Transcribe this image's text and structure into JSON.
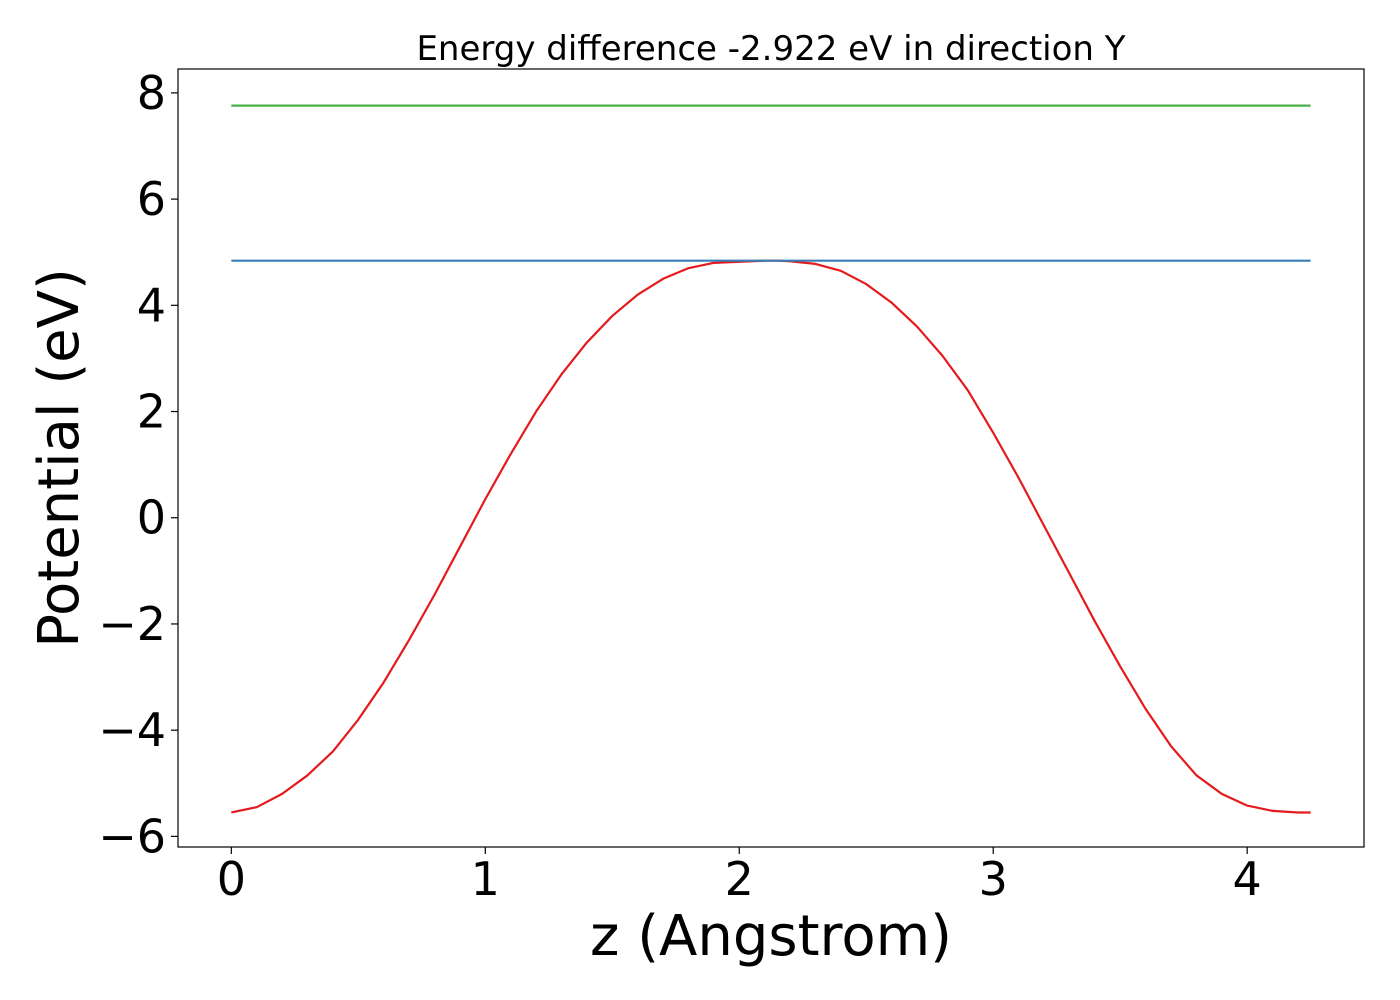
{
  "chart_data": {
    "type": "line",
    "title": "Energy difference -2.922 eV in direction Y",
    "xlabel": "z (Angstrom)",
    "ylabel": "Potential (eV)",
    "xlim": [
      -0.21,
      4.46
    ],
    "ylim": [
      -6.2,
      8.45
    ],
    "xticks": [
      0,
      1,
      2,
      3,
      4
    ],
    "yticks": [
      -6,
      -4,
      -2,
      0,
      2,
      4,
      6,
      8
    ],
    "xtick_labels": [
      "0",
      "1",
      "2",
      "3",
      "4"
    ],
    "ytick_labels": [
      "−6",
      "−4",
      "−2",
      "0",
      "2",
      "4",
      "6",
      "8"
    ],
    "grid": false,
    "series": [
      {
        "color": "#e41a1c",
        "x": [
          0.0,
          0.1,
          0.2,
          0.3,
          0.4,
          0.5,
          0.6,
          0.7,
          0.8,
          0.9,
          1.0,
          1.1,
          1.2,
          1.3,
          1.4,
          1.5,
          1.6,
          1.7,
          1.8,
          1.9,
          2.0,
          2.1,
          2.15,
          2.2,
          2.3,
          2.4,
          2.5,
          2.6,
          2.7,
          2.8,
          2.9,
          3.0,
          3.1,
          3.2,
          3.3,
          3.4,
          3.5,
          3.6,
          3.7,
          3.8,
          3.9,
          4.0,
          4.1,
          4.2,
          4.25
        ],
        "y": [
          -5.55,
          -5.45,
          -5.2,
          -4.85,
          -4.4,
          -3.8,
          -3.1,
          -2.3,
          -1.45,
          -0.55,
          0.35,
          1.2,
          2.0,
          2.7,
          3.3,
          3.8,
          4.2,
          4.5,
          4.7,
          4.8,
          4.82,
          4.84,
          4.84,
          4.83,
          4.78,
          4.65,
          4.4,
          4.05,
          3.6,
          3.05,
          2.4,
          1.6,
          0.75,
          -0.15,
          -1.05,
          -1.95,
          -2.8,
          -3.6,
          -4.3,
          -4.85,
          -5.2,
          -5.42,
          -5.52,
          -5.55,
          -5.55
        ]
      },
      {
        "color": "#377eb8",
        "x": [
          0.0,
          4.25
        ],
        "y": [
          4.84,
          4.84
        ]
      },
      {
        "color": "#4daf4a",
        "x": [
          0.0,
          4.25
        ],
        "y": [
          7.76,
          7.76
        ]
      }
    ]
  }
}
